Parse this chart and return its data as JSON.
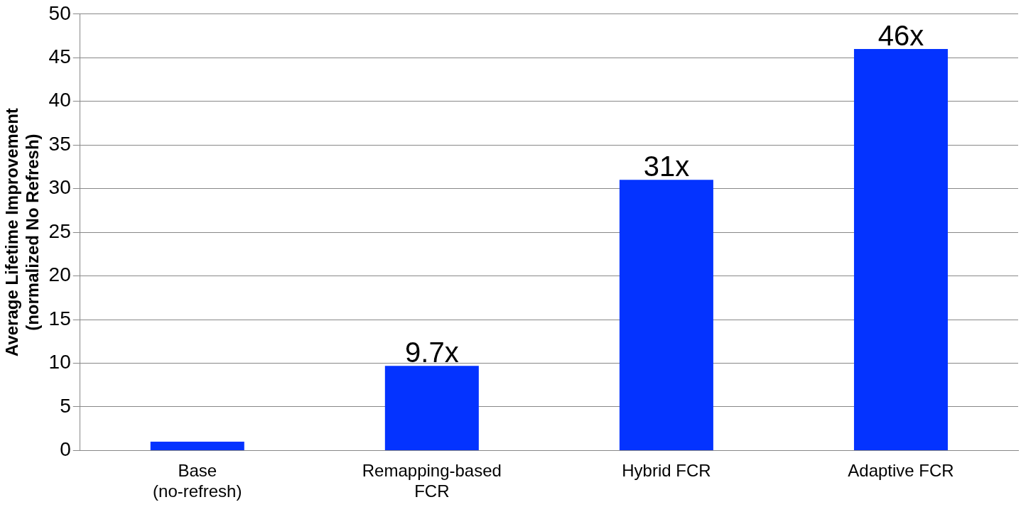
{
  "chart_data": {
    "type": "bar",
    "ylabel": "Average Lifetime Improvement\n(normalized No Refresh)",
    "categories": [
      "Base (no-refresh)",
      "Remapping-based FCR",
      "Hybrid FCR",
      "Adaptive FCR"
    ],
    "values": [
      1,
      9.7,
      31,
      46
    ],
    "color": "#0433ff",
    "value_labels": [
      null,
      "9.7x",
      "31x",
      "46x"
    ],
    "ylim": [
      0,
      50
    ],
    "yticks": [
      0,
      5,
      10,
      15,
      20,
      25,
      30,
      35,
      40,
      45,
      50
    ],
    "grid": "y",
    "legend": false
  }
}
